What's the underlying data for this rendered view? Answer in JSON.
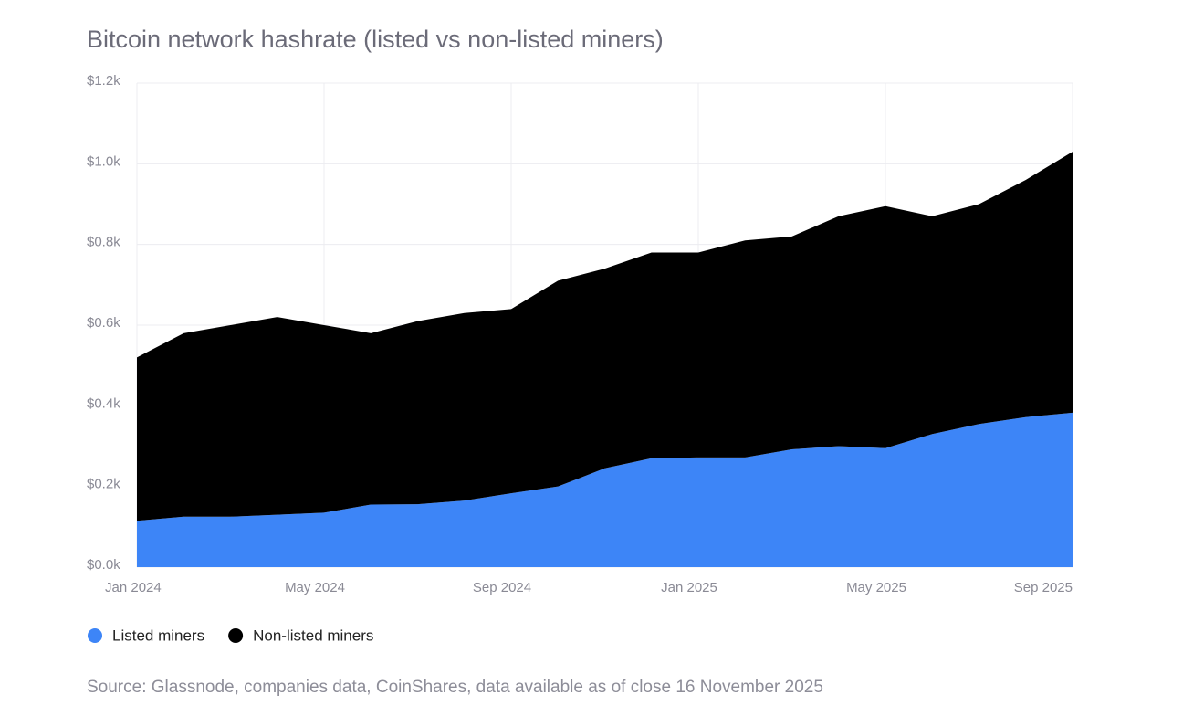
{
  "chart_data": {
    "type": "stacked-area",
    "title": "Bitcoin network hashrate (listed vs non-listed miners)",
    "source": "Source: Glassnode, companies data, CoinShares, data available as of close 16 November 2025",
    "categories": [
      "Jan 2024",
      null,
      null,
      null,
      "May 2024",
      null,
      null,
      null,
      "Sep 2024",
      null,
      null,
      null,
      "Jan 2025",
      null,
      null,
      null,
      "May 2025",
      null,
      null,
      null,
      "Sep 2025"
    ],
    "series": [
      {
        "name": "Listed miners",
        "color": "#3d85f7",
        "values": [
          0.115,
          0.125,
          0.125,
          0.13,
          0.135,
          0.155,
          0.156,
          0.165,
          0.183,
          0.2,
          0.245,
          0.27,
          0.272,
          0.272,
          0.292,
          0.3,
          0.295,
          0.33,
          0.355,
          0.372,
          0.383
        ]
      },
      {
        "name": "Non-listed miners",
        "color": "#000000",
        "values": [
          0.405,
          0.455,
          0.475,
          0.49,
          0.465,
          0.425,
          0.454,
          0.465,
          0.457,
          0.51,
          0.495,
          0.51,
          0.508,
          0.538,
          0.528,
          0.57,
          0.6,
          0.54,
          0.545,
          0.588,
          0.647
        ]
      }
    ],
    "ylim": [
      0,
      1.2
    ],
    "yticks": [
      {
        "value": 0,
        "label": "$0.0k"
      },
      {
        "value": 0.2,
        "label": "$0.2k"
      },
      {
        "value": 0.4,
        "label": "$0.4k"
      },
      {
        "value": 0.6,
        "label": "$0.6k"
      },
      {
        "value": 0.8,
        "label": "$0.8k"
      },
      {
        "value": 1.0,
        "label": "$1.0k"
      },
      {
        "value": 1.2,
        "label": "$1.2k"
      }
    ],
    "grid": true
  }
}
